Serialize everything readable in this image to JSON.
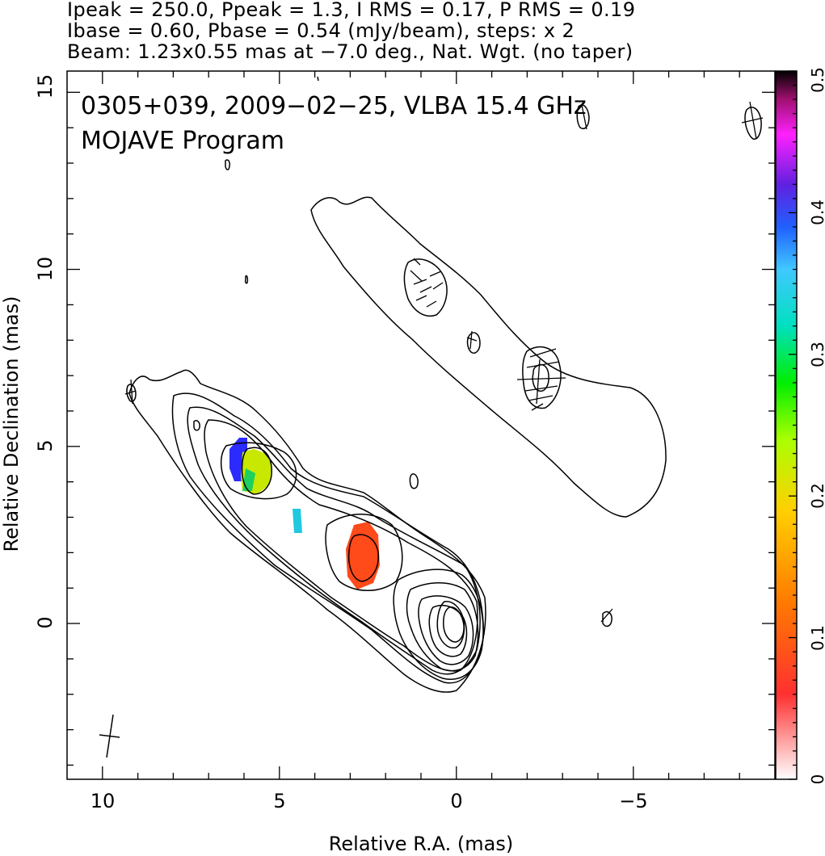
{
  "header": {
    "line1": "Ipeak = 250.0, Ppeak = 1.3, I RMS = 0.17, P RMS = 0.19",
    "line2": "Ibase = 0.60, Pbase = 0.54 (mJy/beam), steps: x 2",
    "line3": "Beam: 1.23x0.55 mas at −7.0 deg., Nat. Wgt. (no taper)"
  },
  "chart_data": {
    "type": "contour",
    "title": "0305+039, 2009−02−25, VLBA 15.4 GHz",
    "subtitle": "MOJAVE Program",
    "xlabel": "Relative R.A. (mas)",
    "ylabel": "Relative Declination (mas)",
    "xlim": [
      11.0,
      -9.0
    ],
    "ylim": [
      -4.4,
      15.6
    ],
    "x_ticks": [
      10,
      5,
      0,
      -5
    ],
    "x_tick_labels": [
      "10",
      "5",
      "0",
      "−5"
    ],
    "y_ticks": [
      0,
      5,
      10,
      15
    ],
    "y_tick_labels": [
      "0",
      "5",
      "10",
      "15"
    ],
    "colorbar": {
      "range": [
        0,
        0.5
      ],
      "ticks": [
        0,
        0.1,
        0.2,
        0.3,
        0.4,
        0.5
      ],
      "tick_labels": [
        "0",
        "0.1",
        "0.2",
        "0.3",
        "0.4",
        "0.5"
      ]
    },
    "polarization_patches": [
      {
        "x": 6.0,
        "y": 4.7,
        "value": 0.37
      },
      {
        "x": 5.6,
        "y": 4.2,
        "value": 0.21
      },
      {
        "x": 4.55,
        "y": 2.9,
        "value": 0.31
      },
      {
        "x": 2.75,
        "y": 1.9,
        "value": 0.1
      }
    ]
  }
}
